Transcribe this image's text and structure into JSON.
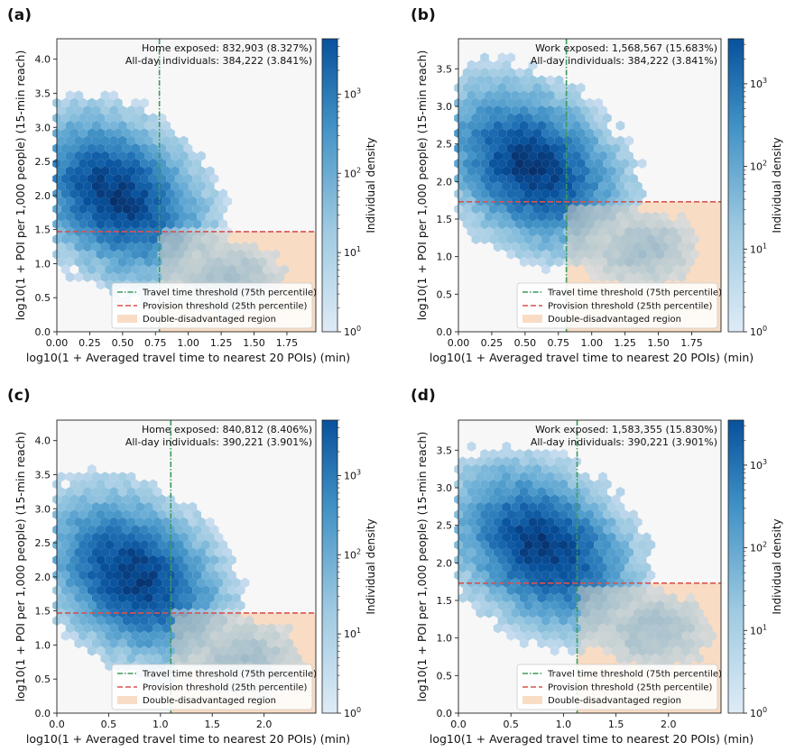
{
  "figure": {
    "xlabel": "log10(1 + Averaged travel time to nearest 20 POIs) (min)",
    "ylabel": "log10(1 + POI per 1,000 people) (15-min reach)",
    "colorbar_label": "Individual density",
    "colorbar_ticks": [
      "10^0",
      "10^1",
      "10^2",
      "10^3"
    ],
    "legend": {
      "travel": "Travel time threshold (75th percentile)",
      "provision": "Provision threshold (25th percentile)",
      "region": "Double-disadvantaged region"
    },
    "colors": {
      "travel_line": "#3a9a5a",
      "provision_line": "#d9534f",
      "region_fill": "#f8dcc4",
      "hex_dark": "#08306b",
      "hex_light": "#deebf7",
      "plot_bg": "#f7f7f7"
    }
  },
  "chart_data": [
    {
      "type": "heatmap",
      "panel": "(a)",
      "annotation_line1": "Home exposed: 832,903 (8.327%)",
      "annotation_line2": "All-day individuals: 384,222 (3.841%)",
      "xlim": [
        0,
        1.97
      ],
      "ylim": [
        0,
        4.3
      ],
      "x_ticks": [
        "0.00",
        "0.25",
        "0.50",
        "0.75",
        "1.00",
        "1.25",
        "1.50",
        "1.75"
      ],
      "x_tick_values": [
        0,
        0.25,
        0.5,
        0.75,
        1.0,
        1.25,
        1.5,
        1.75
      ],
      "y_ticks": [
        "0.0",
        "0.5",
        "1.0",
        "1.5",
        "2.0",
        "2.5",
        "3.0",
        "3.5",
        "4.0"
      ],
      "y_tick_values": [
        0,
        0.5,
        1.0,
        1.5,
        2.0,
        2.5,
        3.0,
        3.5,
        4.0
      ],
      "travel_threshold": 0.78,
      "provision_threshold": 1.47,
      "density_center": [
        0.45,
        2.0
      ],
      "color_scale": "log",
      "colorbar_range": [
        1,
        5000
      ]
    },
    {
      "type": "heatmap",
      "panel": "(b)",
      "annotation_line1": "Work exposed: 1,568,567 (15.683%)",
      "annotation_line2": "All-day individuals: 384,222 (3.841%)",
      "xlim": [
        0,
        1.97
      ],
      "ylim": [
        0,
        3.9
      ],
      "x_ticks": [
        "0.00",
        "0.25",
        "0.50",
        "0.75",
        "1.00",
        "1.25",
        "1.50",
        "1.75"
      ],
      "x_tick_values": [
        0,
        0.25,
        0.5,
        0.75,
        1.0,
        1.25,
        1.5,
        1.75
      ],
      "y_ticks": [
        "0.0",
        "0.5",
        "1.0",
        "1.5",
        "2.0",
        "2.5",
        "3.0",
        "3.5"
      ],
      "y_tick_values": [
        0,
        0.5,
        1.0,
        1.5,
        2.0,
        2.5,
        3.0,
        3.5
      ],
      "travel_threshold": 0.81,
      "provision_threshold": 1.73,
      "density_center": [
        0.55,
        2.2
      ],
      "color_scale": "log",
      "colorbar_range": [
        1,
        3500
      ]
    },
    {
      "type": "heatmap",
      "panel": "(c)",
      "annotation_line1": "Home exposed: 840,812 (8.406%)",
      "annotation_line2": "All-day individuals: 390,221 (3.901%)",
      "xlim": [
        0,
        2.5
      ],
      "ylim": [
        0,
        4.3
      ],
      "x_ticks": [
        "0.0",
        "0.5",
        "1.0",
        "1.5",
        "2.0"
      ],
      "x_tick_values": [
        0,
        0.5,
        1.0,
        1.5,
        2.0
      ],
      "y_ticks": [
        "0.0",
        "0.5",
        "1.0",
        "1.5",
        "2.0",
        "2.5",
        "3.0",
        "3.5",
        "4.0"
      ],
      "y_tick_values": [
        0,
        0.5,
        1.0,
        1.5,
        2.0,
        2.5,
        3.0,
        3.5,
        4.0
      ],
      "travel_threshold": 1.1,
      "provision_threshold": 1.47,
      "density_center": [
        0.75,
        2.0
      ],
      "color_scale": "log",
      "colorbar_range": [
        1,
        5000
      ]
    },
    {
      "type": "heatmap",
      "panel": "(d)",
      "annotation_line1": "Work exposed: 1,583,355 (15.830%)",
      "annotation_line2": "All-day individuals: 390,221 (3.901%)",
      "xlim": [
        0,
        2.5
      ],
      "ylim": [
        0,
        3.9
      ],
      "x_ticks": [
        "0.0",
        "0.5",
        "1.0",
        "1.5",
        "2.0"
      ],
      "x_tick_values": [
        0,
        0.5,
        1.0,
        1.5,
        2.0
      ],
      "y_ticks": [
        "0.0",
        "0.5",
        "1.0",
        "1.5",
        "2.0",
        "2.5",
        "3.0",
        "3.5"
      ],
      "y_tick_values": [
        0,
        0.5,
        1.0,
        1.5,
        2.0,
        2.5,
        3.0,
        3.5
      ],
      "travel_threshold": 1.13,
      "provision_threshold": 1.73,
      "density_center": [
        0.8,
        2.2
      ],
      "color_scale": "log",
      "colorbar_range": [
        1,
        3500
      ]
    }
  ]
}
